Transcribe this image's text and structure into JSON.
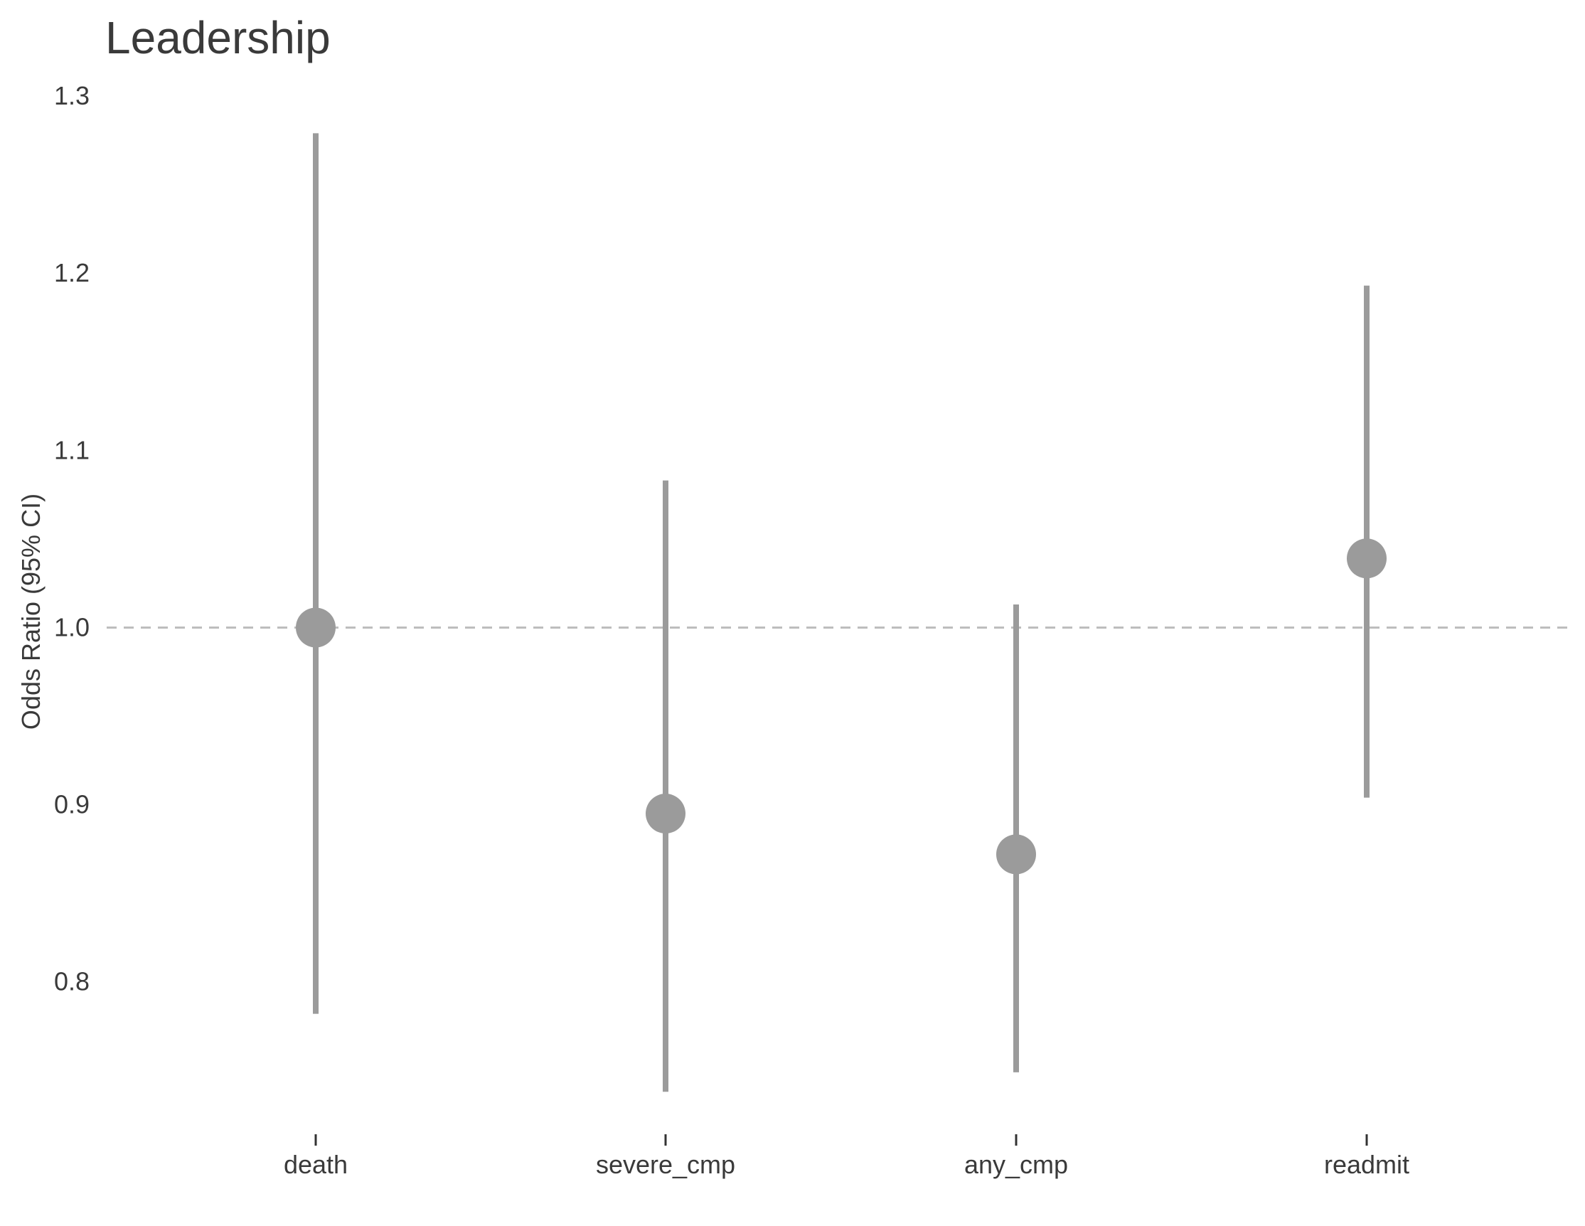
{
  "chart_data": {
    "type": "scatter",
    "title": "Leadership",
    "xlabel": "",
    "ylabel": "Odds Ratio (95% CI)",
    "categories": [
      "death",
      "severe_cmp",
      "any_cmp",
      "readmit"
    ],
    "series": [
      {
        "estimate": [
          1.0,
          0.895,
          0.872,
          1.039
        ],
        "lower": [
          0.782,
          0.738,
          0.749,
          0.904
        ],
        "upper": [
          1.279,
          1.083,
          1.013,
          1.193
        ]
      }
    ],
    "reference_line": 1.0,
    "yticks": [
      "0.8",
      "0.9",
      "1.0",
      "1.1",
      "1.2",
      "1.3"
    ],
    "ytick_values": [
      0.8,
      0.9,
      1.0,
      1.1,
      1.2,
      1.3
    ],
    "ylim": [
      0.712,
      1.3
    ],
    "grid": false,
    "legend": "none",
    "colors": {
      "marker": "#9b9b9b",
      "reference": "#bdbdbd",
      "text": "#3a3a3a"
    }
  }
}
